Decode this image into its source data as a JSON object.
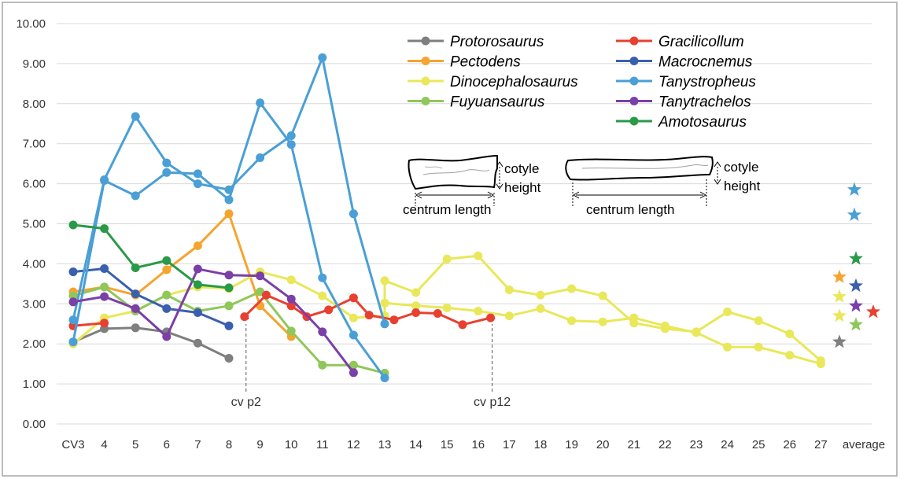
{
  "chart_data": {
    "type": "line",
    "categories": [
      "CV3",
      "4",
      "5",
      "6",
      "7",
      "8",
      "9",
      "10",
      "11",
      "12",
      "13",
      "14",
      "15",
      "16",
      "17",
      "18",
      "19",
      "20",
      "21",
      "22",
      "23",
      "24",
      "25",
      "26",
      "27",
      "average"
    ],
    "ylim": [
      0,
      10
    ],
    "yticks": [
      "0.00",
      "1.00",
      "2.00",
      "3.00",
      "4.00",
      "5.00",
      "6.00",
      "7.00",
      "8.00",
      "9.00",
      "10.00"
    ],
    "grid": true,
    "legend_position": "top-center",
    "series": [
      {
        "name": "Protorosaurus",
        "color": "#7f7f7f",
        "lines": [
          [
            [
              0,
              2.05
            ],
            [
              1,
              2.38
            ],
            [
              2,
              2.4
            ],
            [
              3,
              2.3
            ],
            [
              4,
              2.02
            ],
            [
              5,
              1.64
            ]
          ]
        ],
        "average": 2.05
      },
      {
        "name": "Pectodens",
        "color": "#f5a430",
        "lines": [
          [
            [
              0,
              3.3
            ],
            [
              1,
              3.42
            ],
            [
              2,
              3.22
            ],
            [
              3,
              3.85
            ],
            [
              4,
              4.45
            ],
            [
              5,
              5.25
            ],
            [
              6,
              2.95
            ],
            [
              7,
              2.18
            ]
          ]
        ],
        "average": 3.67
      },
      {
        "name": "Dinocephalosaurus",
        "color": "#e8e85a",
        "lines": [
          [
            [
              0,
              2.0
            ],
            [
              1,
              2.65
            ],
            [
              2,
              2.82
            ],
            [
              3,
              3.22
            ],
            [
              4,
              3.42
            ],
            [
              5,
              3.38
            ],
            [
              6,
              3.8
            ],
            [
              7,
              3.6
            ],
            [
              8,
              3.2
            ],
            [
              9,
              2.65
            ],
            [
              10,
              2.7
            ],
            [
              10,
              3.58
            ],
            [
              11,
              3.28
            ],
            [
              12,
              4.12
            ],
            [
              13,
              4.2
            ],
            [
              14,
              3.35
            ],
            [
              15,
              3.22
            ],
            [
              16,
              3.38
            ],
            [
              17,
              3.2
            ],
            [
              18,
              2.52
            ],
            [
              19,
              2.38
            ],
            [
              20,
              2.3
            ],
            [
              21,
              2.8
            ],
            [
              22,
              2.58
            ],
            [
              23,
              2.25
            ],
            [
              24,
              1.58
            ]
          ],
          [
            [
              10,
              3.02
            ],
            [
              11,
              2.95
            ],
            [
              12,
              2.9
            ],
            [
              13,
              2.82
            ],
            [
              14,
              2.7
            ],
            [
              15,
              2.88
            ],
            [
              16,
              2.58
            ],
            [
              17,
              2.55
            ],
            [
              18,
              2.65
            ],
            [
              19,
              2.45
            ],
            [
              20,
              2.28
            ],
            [
              21,
              1.92
            ],
            [
              22,
              1.92
            ],
            [
              23,
              1.72
            ],
            [
              24,
              1.5
            ]
          ]
        ],
        "average": [
          3.18,
          2.7
        ]
      },
      {
        "name": "Fuyuansaurus",
        "color": "#8fc75a",
        "lines": [
          [
            [
              0,
              3.2
            ],
            [
              1,
              3.42
            ],
            [
              2,
              2.82
            ],
            [
              3,
              3.22
            ],
            [
              4,
              2.82
            ],
            [
              5,
              2.95
            ],
            [
              6,
              3.3
            ],
            [
              7,
              2.32
            ],
            [
              8,
              1.47
            ],
            [
              9,
              1.47
            ],
            [
              10,
              1.27
            ]
          ]
        ],
        "average": 2.48
      },
      {
        "name": "Gracilicollum",
        "color": "#e84030",
        "lines": [
          [
            [
              0,
              2.45
            ],
            [
              1,
              2.52
            ]
          ],
          [
            [
              5.5,
              2.68
            ],
            [
              6.2,
              3.22
            ],
            [
              7,
              2.95
            ],
            [
              7.5,
              2.68
            ],
            [
              8.2,
              2.85
            ],
            [
              9,
              3.15
            ],
            [
              9.5,
              2.72
            ],
            [
              10.3,
              2.6
            ],
            [
              11,
              2.78
            ],
            [
              11.7,
              2.76
            ],
            [
              12.5,
              2.48
            ],
            [
              13.4,
              2.65
            ]
          ]
        ],
        "average": 2.8
      },
      {
        "name": "Macrocnemus",
        "color": "#3a5fae",
        "lines": [
          [
            [
              0,
              3.8
            ],
            [
              1,
              3.88
            ],
            [
              2,
              3.25
            ],
            [
              3,
              2.88
            ],
            [
              4,
              2.78
            ],
            [
              5,
              2.45
            ]
          ]
        ],
        "average": 3.45
      },
      {
        "name": "Tanystropheus",
        "color": "#4a9fd6",
        "lines": [
          [
            [
              0,
              2.05
            ],
            [
              1,
              6.08
            ],
            [
              2,
              5.7
            ],
            [
              3,
              6.28
            ],
            [
              4,
              6.25
            ],
            [
              5,
              5.6
            ],
            [
              6,
              8.02
            ],
            [
              7,
              6.98
            ],
            [
              8,
              3.65
            ],
            [
              9,
              2.22
            ],
            [
              10,
              1.15
            ]
          ],
          [
            [
              0,
              2.6
            ],
            [
              1,
              6.1
            ],
            [
              2,
              7.68
            ],
            [
              3,
              6.52
            ],
            [
              4,
              6.0
            ],
            [
              5,
              5.85
            ],
            [
              6,
              6.65
            ],
            [
              7,
              7.2
            ],
            [
              8,
              9.15
            ],
            [
              9,
              5.25
            ],
            [
              10,
              2.5
            ]
          ]
        ],
        "average": [
          5.85,
          5.22
        ]
      },
      {
        "name": "Tanytrachelos",
        "color": "#7b3fa8",
        "lines": [
          [
            [
              0,
              3.05
            ],
            [
              1,
              3.18
            ],
            [
              2,
              2.88
            ],
            [
              3,
              2.18
            ],
            [
              4,
              3.87
            ],
            [
              5,
              3.72
            ],
            [
              6,
              3.7
            ],
            [
              7,
              3.12
            ],
            [
              8,
              2.3
            ],
            [
              9,
              1.28
            ]
          ]
        ],
        "average": 2.95
      },
      {
        "name": "Amotosaurus",
        "color": "#2a9a48",
        "lines": [
          [
            [
              0,
              4.97
            ],
            [
              1,
              4.88
            ],
            [
              2,
              3.9
            ],
            [
              3,
              4.08
            ],
            [
              4,
              3.48
            ],
            [
              5,
              3.4
            ]
          ]
        ],
        "average": 4.13
      }
    ],
    "annotations": [
      {
        "text": "cv p2",
        "x": 5.55
      },
      {
        "text": "cv p12",
        "x": 13.45
      }
    ],
    "inset": {
      "left": {
        "measure_label": "cotyle",
        "measure_label2": "height",
        "length_label": "centrum length"
      },
      "right": {
        "measure_label": "cotyle",
        "measure_label2": "height",
        "length_label": "centrum length"
      }
    }
  }
}
